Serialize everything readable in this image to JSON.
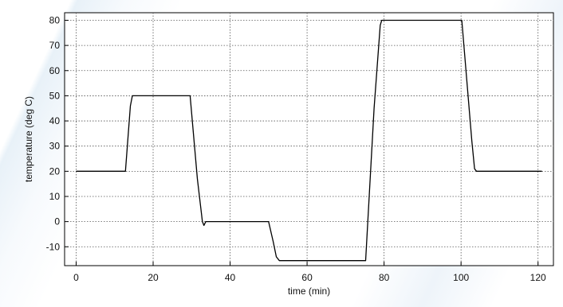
{
  "chart_data": {
    "type": "line",
    "title": "",
    "xlabel": "time (min)",
    "ylabel": "temperature (deg C)",
    "xlim": [
      -3,
      124
    ],
    "ylim": [
      -17.5,
      83
    ],
    "xticks": [
      0,
      20,
      40,
      60,
      80,
      100,
      120
    ],
    "yticks": [
      -10,
      0,
      10,
      20,
      30,
      40,
      50,
      60,
      70,
      80
    ],
    "grid": true,
    "series": [
      {
        "name": "",
        "color": "#000000",
        "x": [
          0,
          12.8,
          14.1,
          14.6,
          29.6,
          31.5,
          32.8,
          33.2,
          33.7,
          50,
          51.2,
          52.0,
          52.8,
          75.2,
          77.4,
          79.0,
          79.4,
          100.2,
          102.8,
          103.5,
          104.0,
          121
        ],
        "y": [
          20,
          20,
          46,
          50,
          50,
          17,
          0,
          -1.5,
          0,
          0,
          -8,
          -14,
          -15.5,
          -15.5,
          45,
          78,
          80,
          80,
          32,
          21,
          20,
          20
        ]
      }
    ]
  }
}
